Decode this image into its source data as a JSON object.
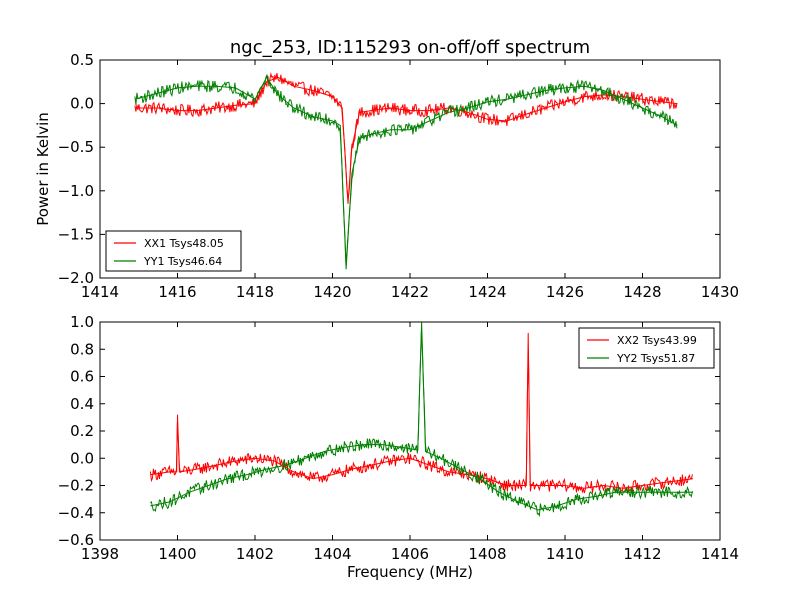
{
  "figure": {
    "title": "ngc_253, ID:115293 on-off/off spectrum",
    "xlabel": "Frequency (MHz)"
  },
  "chart_data": [
    {
      "type": "line",
      "title": "ngc_253, ID:115293 on-off/off spectrum",
      "xlabel": "",
      "ylabel": "Power in Kelvin",
      "xlim": [
        1414,
        1430
      ],
      "ylim": [
        -2.0,
        0.5
      ],
      "xticks": [
        "1414",
        "1416",
        "1418",
        "1420",
        "1422",
        "1424",
        "1426",
        "1428",
        "1430"
      ],
      "yticks": [
        "0.5",
        "0.0",
        "−0.5",
        "−1.0",
        "−1.5",
        "−2.0"
      ],
      "legend_position": "bottom-left",
      "grid": false,
      "series": [
        {
          "name": "XX1 Tsys48.05",
          "color": "#ff0000",
          "x": [
            1414.9,
            1415.5,
            1416.0,
            1416.5,
            1417.0,
            1417.5,
            1418.0,
            1418.3,
            1418.6,
            1419.0,
            1419.5,
            1420.0,
            1420.25,
            1420.4,
            1420.5,
            1420.7,
            1421.0,
            1421.5,
            1422.0,
            1422.5,
            1423.0,
            1423.5,
            1424.0,
            1424.5,
            1425.0,
            1425.5,
            1426.0,
            1426.5,
            1427.0,
            1427.5,
            1428.0,
            1428.5,
            1428.9
          ],
          "y": [
            -0.05,
            -0.05,
            -0.08,
            -0.08,
            -0.05,
            -0.02,
            0.0,
            0.25,
            0.3,
            0.2,
            0.15,
            0.08,
            -0.05,
            -1.15,
            -0.5,
            -0.1,
            -0.08,
            -0.05,
            -0.08,
            -0.08,
            -0.05,
            -0.1,
            -0.18,
            -0.2,
            -0.12,
            -0.05,
            0.02,
            0.08,
            0.1,
            0.08,
            0.05,
            0.02,
            0.0
          ]
        },
        {
          "name": "YY1 Tsys46.64",
          "color": "#008000",
          "x": [
            1414.9,
            1415.5,
            1416.0,
            1416.5,
            1417.0,
            1417.5,
            1418.0,
            1418.3,
            1418.6,
            1419.0,
            1419.5,
            1420.0,
            1420.2,
            1420.35,
            1420.5,
            1420.7,
            1421.0,
            1421.5,
            1422.0,
            1422.5,
            1423.0,
            1423.5,
            1424.0,
            1424.5,
            1425.0,
            1425.5,
            1426.0,
            1426.5,
            1427.0,
            1427.5,
            1428.0,
            1428.5,
            1428.9
          ],
          "y": [
            0.05,
            0.12,
            0.18,
            0.2,
            0.2,
            0.18,
            0.05,
            0.3,
            0.1,
            -0.05,
            -0.15,
            -0.2,
            -0.25,
            -1.9,
            -0.8,
            -0.4,
            -0.35,
            -0.3,
            -0.3,
            -0.2,
            -0.1,
            -0.05,
            0.02,
            0.05,
            0.1,
            0.15,
            0.18,
            0.2,
            0.15,
            0.05,
            -0.05,
            -0.15,
            -0.25
          ]
        }
      ]
    },
    {
      "type": "line",
      "title": "",
      "xlabel": "Frequency (MHz)",
      "ylabel": "",
      "xlim": [
        1398,
        1414
      ],
      "ylim": [
        -0.6,
        1.0
      ],
      "xticks": [
        "1398",
        "1400",
        "1402",
        "1404",
        "1406",
        "1408",
        "1410",
        "1412",
        "1414"
      ],
      "yticks": [
        "1.0",
        "0.8",
        "0.6",
        "0.4",
        "0.2",
        "0.0",
        "−0.2",
        "−0.4",
        "−0.6"
      ],
      "legend_position": "top-right",
      "grid": false,
      "series": [
        {
          "name": "XX2 Tsys43.99",
          "color": "#ff0000",
          "x": [
            1399.3,
            1399.8,
            1399.98,
            1400.0,
            1400.05,
            1400.5,
            1401.0,
            1401.5,
            1402.0,
            1402.5,
            1403.0,
            1403.5,
            1404.0,
            1404.5,
            1405.0,
            1405.5,
            1406.0,
            1406.5,
            1407.0,
            1407.5,
            1408.0,
            1408.5,
            1409.0,
            1409.05,
            1409.1,
            1409.5,
            1410.0,
            1410.5,
            1411.0,
            1411.5,
            1412.0,
            1412.5,
            1413.3
          ],
          "y": [
            -0.12,
            -0.1,
            -0.1,
            0.32,
            -0.1,
            -0.08,
            -0.05,
            -0.02,
            0.0,
            -0.02,
            -0.1,
            -0.15,
            -0.12,
            -0.08,
            -0.05,
            -0.02,
            0.0,
            -0.05,
            -0.1,
            -0.12,
            -0.15,
            -0.2,
            -0.2,
            0.92,
            -0.2,
            -0.2,
            -0.2,
            -0.22,
            -0.2,
            -0.22,
            -0.2,
            -0.18,
            -0.15
          ]
        },
        {
          "name": "YY2 Tsys51.87",
          "color": "#008000",
          "x": [
            1399.3,
            1399.8,
            1400.3,
            1400.8,
            1401.3,
            1401.8,
            1402.3,
            1402.8,
            1403.3,
            1403.8,
            1404.3,
            1404.8,
            1405.3,
            1405.8,
            1406.2,
            1406.3,
            1406.4,
            1406.8,
            1407.3,
            1407.8,
            1408.3,
            1408.8,
            1409.3,
            1409.8,
            1410.3,
            1410.8,
            1411.3,
            1411.8,
            1412.3,
            1412.8,
            1413.3
          ],
          "y": [
            -0.35,
            -0.32,
            -0.25,
            -0.2,
            -0.15,
            -0.12,
            -0.08,
            -0.05,
            0.0,
            0.05,
            0.08,
            0.1,
            0.1,
            0.08,
            0.06,
            1.0,
            0.05,
            0.0,
            -0.08,
            -0.15,
            -0.25,
            -0.32,
            -0.38,
            -0.35,
            -0.3,
            -0.28,
            -0.25,
            -0.25,
            -0.25,
            -0.25,
            -0.25
          ]
        }
      ]
    }
  ]
}
